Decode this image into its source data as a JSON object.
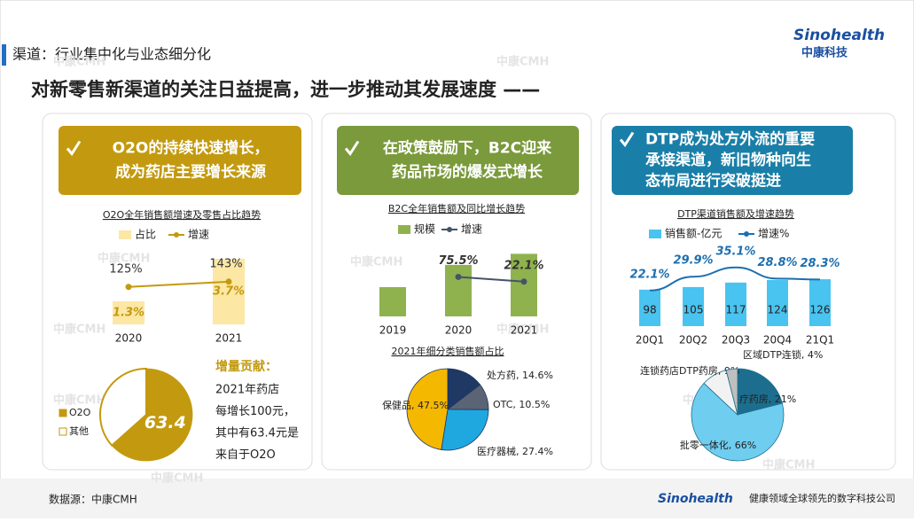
{
  "header": {
    "section": "渠道：行业集中化与业态细分化",
    "title": "对新零售新渠道的关注日益提高，进一步推动其发展速度 ——",
    "logo": "Sinohealth",
    "logo_cn": "中康科技"
  },
  "watermark": "中康CMH",
  "panels": [
    {
      "lines": [
        "O2O的持续快速增长，",
        "成为药店主要增长来源"
      ],
      "color": "#c39a0f"
    },
    {
      "lines": [
        "在政策鼓励下，B2C迎来",
        "药品市场的爆发式增长"
      ],
      "color": "#7a9a3b"
    },
    {
      "lines": [
        "DTP成为处方外流的重要",
        "承接渠道，新旧物种向生",
        "态布局进行突破挺进"
      ],
      "color": "#1a7fa8"
    }
  ],
  "chart_data": [
    {
      "type": "bar-line",
      "title": "O2O全年销售额增速及零售占比趋势",
      "categories": [
        "2020",
        "2021"
      ],
      "series": [
        {
          "name": "占比",
          "color": "#fce7a4",
          "values": [
            1.3,
            3.7
          ],
          "value_labels": [
            "1.3%",
            "3.7%"
          ]
        },
        {
          "name": "增速",
          "color": "#c39a0f",
          "values": [
            125,
            143
          ],
          "value_labels": [
            "125%",
            "143%"
          ]
        }
      ]
    },
    {
      "type": "pie",
      "categories": [
        "O2O",
        "其他"
      ],
      "values": [
        63.4,
        36.6
      ],
      "value_labels": [
        "63.4",
        null
      ],
      "colors": [
        "#c39a0f",
        "#ffffff"
      ],
      "annotation": {
        "title": "增量贡献：",
        "lines": [
          "2021年药店",
          "每增长100元，",
          "其中有63.4元是",
          "来自于O2O"
        ]
      }
    },
    {
      "type": "bar-line",
      "title": "B2C全年销售额及同比增长趋势",
      "categories": [
        "2019",
        "2020",
        "2021"
      ],
      "series": [
        {
          "name": "规模",
          "color": "#8fb24f",
          "values": [
            100,
            176,
            214
          ]
        },
        {
          "name": "增速",
          "color": "#44546a",
          "values": [
            null,
            75.5,
            22.1
          ],
          "value_labels": [
            null,
            "75.5%",
            "22.1%"
          ]
        }
      ]
    },
    {
      "type": "pie",
      "title": "2021年细分类销售额占比",
      "categories": [
        "处方药",
        "OTC",
        "医疗器械",
        "保健品"
      ],
      "values": [
        14.6,
        10.5,
        27.4,
        47.5
      ],
      "value_labels": [
        "处方药, 14.6%",
        "OTC, 10.5%",
        "医疗器械, 27.4%",
        "保健品, 47.5%"
      ],
      "colors": [
        "#1f3864",
        "#5a6475",
        "#1fa8e0",
        "#f5b800"
      ]
    },
    {
      "type": "bar-line",
      "title": "DTP渠道销售额及增速趋势",
      "categories": [
        "20Q1",
        "20Q2",
        "20Q3",
        "20Q4",
        "21Q1"
      ],
      "series": [
        {
          "name": "销售额-亿元",
          "color": "#49c3f0",
          "values": [
            98,
            105,
            117,
            124,
            126
          ]
        },
        {
          "name": "增速%",
          "color": "#1d6fb0",
          "values": [
            22.1,
            29.9,
            35.1,
            28.8,
            28.3
          ],
          "value_labels": [
            "22.1%",
            "29.9%",
            "35.1%",
            "28.8%",
            "28.3%"
          ]
        }
      ]
    },
    {
      "type": "pie",
      "categories": [
        "互联网医疗药房",
        "批零一体化",
        "连锁药店DTP药房",
        "区域DTP连锁"
      ],
      "values": [
        21,
        66,
        9,
        4
      ],
      "value_labels": [
        "互联网医疗药房, 21%",
        "批零一体化, 66%",
        "连锁药店DTP药房, 9%",
        "区域DTP连锁, 4%"
      ],
      "colors": [
        "#1d6e8e",
        "#6fcdf0",
        "#f2f2f2",
        "#bfbfbf"
      ]
    }
  ],
  "footer": {
    "source": "数据源：中康CMH",
    "logo": "Sinohealth",
    "slogan": "健康领域全球领先的数字科技公司"
  }
}
